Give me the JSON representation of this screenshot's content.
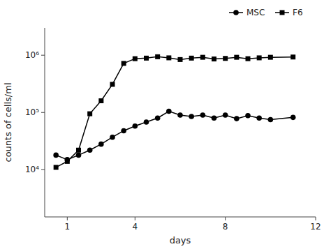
{
  "chart_data": {
    "type": "line",
    "xlabel": "days",
    "ylabel": "counts of cells/ml",
    "x": [
      0.5,
      1.0,
      1.5,
      2.0,
      2.5,
      3.0,
      3.5,
      4.0,
      4.5,
      5.0,
      5.5,
      6.0,
      6.5,
      7.0,
      7.5,
      8.0,
      8.5,
      9.0,
      9.5,
      10.0,
      11.0
    ],
    "series": [
      {
        "name": "MSC",
        "color": "#000000",
        "marker": "circle",
        "values": [
          18000,
          15000,
          18000,
          22000,
          28000,
          37000,
          48000,
          58000,
          68000,
          80000,
          105000,
          90000,
          85000,
          90000,
          80000,
          90000,
          78000,
          88000,
          80000,
          75000,
          82000
        ]
      },
      {
        "name": "F6",
        "color": "#000000",
        "marker": "square",
        "values": [
          11000,
          14000,
          22000,
          95000,
          160000,
          310000,
          720000,
          870000,
          890000,
          940000,
          900000,
          840000,
          890000,
          920000,
          860000,
          880000,
          920000,
          870000,
          900000,
          920000,
          930000
        ]
      }
    ],
    "xlim": [
      0,
      12
    ],
    "ylim": [
      1500,
      3000000
    ],
    "xticks": [
      1,
      4,
      8,
      12
    ],
    "yticks": [
      {
        "value": 10000,
        "label": "10⁴"
      },
      {
        "value": 100000,
        "label": "10⁵"
      },
      {
        "value": 1000000,
        "label": "10⁶"
      }
    ],
    "log": "y",
    "grid": false,
    "legend": "upper right"
  }
}
